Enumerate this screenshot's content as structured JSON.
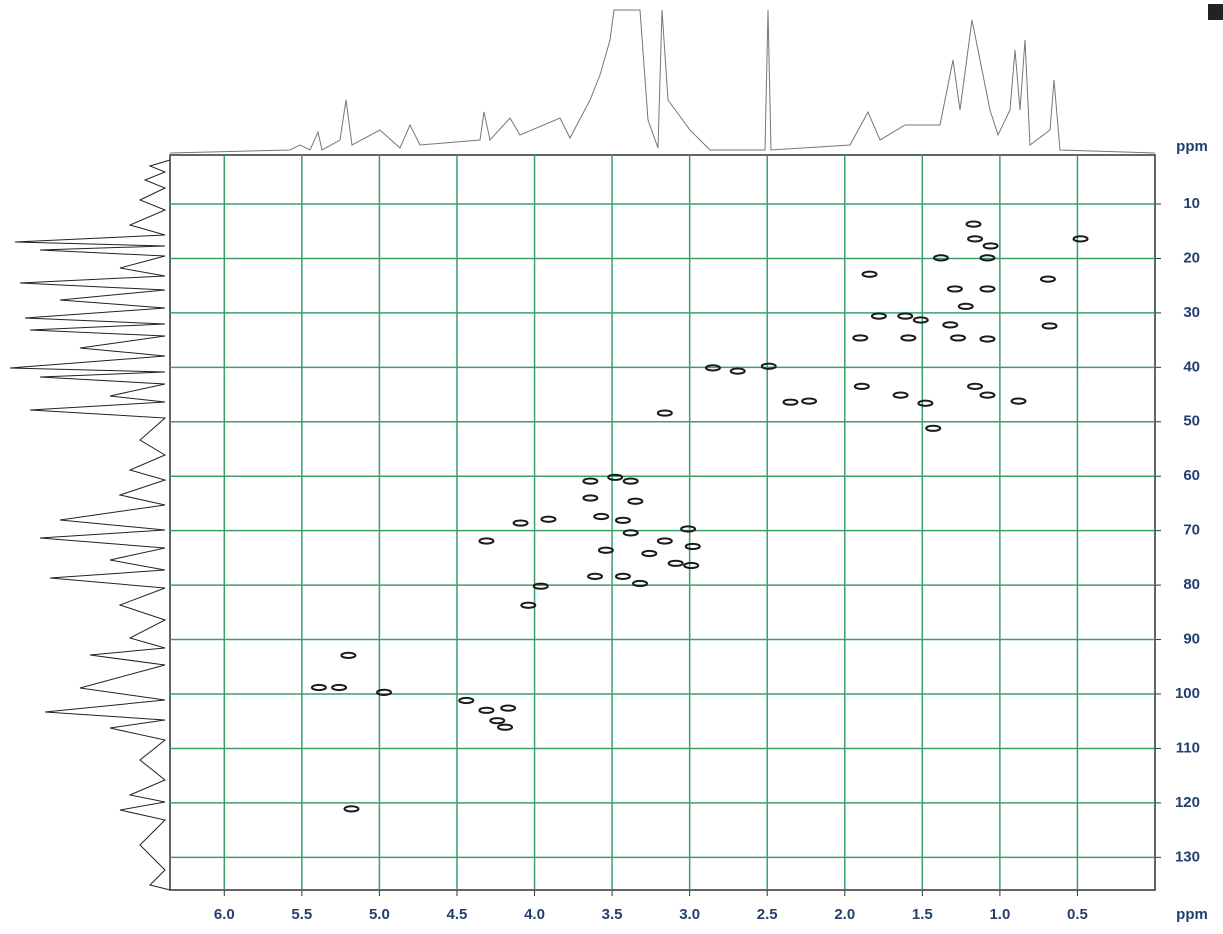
{
  "chart_data": {
    "type": "scatter",
    "x_label": "ppm",
    "y_label": "ppm",
    "x": [
      1.17,
      1.16,
      0.48,
      1.06,
      1.08,
      1.38,
      1.84,
      0.69,
      1.29,
      1.08,
      1.22,
      1.78,
      1.61,
      1.51,
      1.32,
      0.68,
      1.9,
      1.59,
      1.27,
      1.08,
      2.85,
      2.69,
      2.49,
      2.35,
      2.23,
      1.89,
      1.16,
      1.08,
      0.88,
      1.64,
      1.48,
      1.43,
      3.16,
      3.64,
      3.48,
      3.38,
      3.64,
      3.35,
      4.09,
      3.91,
      3.57,
      3.43,
      3.01,
      3.38,
      3.16,
      4.31,
      3.54,
      2.98,
      3.26,
      3.09,
      2.99,
      3.43,
      3.32,
      3.96,
      4.04,
      3.61,
      5.2,
      5.39,
      5.26,
      4.97,
      4.44,
      4.31,
      4.17,
      4.24,
      4.19,
      5.18
    ],
    "values": [
      13.7,
      16.4,
      16.4,
      17.7,
      19.9,
      19.9,
      22.9,
      23.8,
      25.6,
      25.6,
      28.8,
      30.6,
      30.6,
      31.3,
      32.2,
      32.4,
      34.6,
      34.6,
      34.6,
      34.8,
      40.1,
      40.7,
      39.8,
      46.4,
      46.2,
      43.5,
      43.5,
      45.1,
      46.2,
      45.1,
      46.6,
      51.2,
      48.4,
      60.9,
      60.2,
      60.9,
      64.0,
      64.6,
      68.6,
      67.9,
      67.4,
      68.1,
      69.7,
      70.4,
      71.9,
      71.9,
      73.6,
      72.9,
      74.2,
      76.0,
      76.4,
      78.4,
      79.7,
      80.2,
      83.7,
      78.4,
      92.9,
      98.8,
      98.8,
      99.7,
      101.2,
      103.0,
      102.6,
      104.9,
      106.1,
      121.1
    ],
    "color": "#1a1a1a",
    "xlim": [
      6.35,
      0
    ],
    "xticks": [
      {
        "value": 6,
        "label": "6.0"
      },
      5.5,
      {
        "value": 5,
        "label": "5.0"
      },
      4.5,
      {
        "value": 4,
        "label": "4.0"
      },
      3.5,
      {
        "value": 3,
        "label": "3.0"
      },
      2.5,
      {
        "value": 2,
        "label": "2.0"
      },
      1.5,
      {
        "value": 1,
        "label": "1.0"
      },
      0.5
    ],
    "ylim": [
      1,
      136
    ],
    "yticks": [
      10,
      20,
      30,
      40,
      50,
      60,
      70,
      80,
      90,
      100,
      110,
      120,
      130
    ],
    "grid": true,
    "grid_color": "#3aa06a"
  }
}
